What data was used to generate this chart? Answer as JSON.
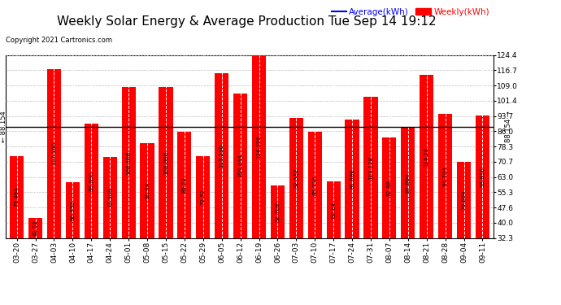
{
  "title": "Weekly Solar Energy & Average Production Tue Sep 14 19:12",
  "copyright": "Copyright 2021 Cartronics.com",
  "legend_avg": "Average(kWh)",
  "legend_weekly": "Weekly(kWh)",
  "average_line": 88.154,
  "average_label": "88.154",
  "categories": [
    "03-20",
    "03-27",
    "04-03",
    "04-10",
    "04-17",
    "04-24",
    "05-01",
    "05-08",
    "05-15",
    "05-22",
    "05-29",
    "06-05",
    "06-12",
    "06-19",
    "06-26",
    "07-03",
    "07-10",
    "07-17",
    "07-24",
    "07-31",
    "08-07",
    "08-14",
    "08-21",
    "08-28",
    "09-04",
    "09-11"
  ],
  "values": [
    73.464,
    42.52,
    117.168,
    60.332,
    89.896,
    72.908,
    108.108,
    80.04,
    108.096,
    85.52,
    73.52,
    115.256,
    104.844,
    124.396,
    58.708,
    92.532,
    85.736,
    60.64,
    91.996,
    103.128,
    82.88,
    87.664,
    114.28,
    94.704,
    70.664,
    93.816
  ],
  "bar_color": "#ff0000",
  "avg_line_color": "#0000ff",
  "background_color": "#ffffff",
  "grid_color": "#bbbbbb",
  "title_color": "#000000",
  "ylabel_right_ticks": [
    32.3,
    40.0,
    47.6,
    55.3,
    63.0,
    70.7,
    78.3,
    86.0,
    93.7,
    101.4,
    109.0,
    116.7,
    124.4
  ],
  "ymin": 32.3,
  "ymax": 124.4,
  "title_fontsize": 11,
  "tick_fontsize": 6.5,
  "value_fontsize": 5.0,
  "copyright_fontsize": 6.0,
  "legend_fontsize": 7.5
}
